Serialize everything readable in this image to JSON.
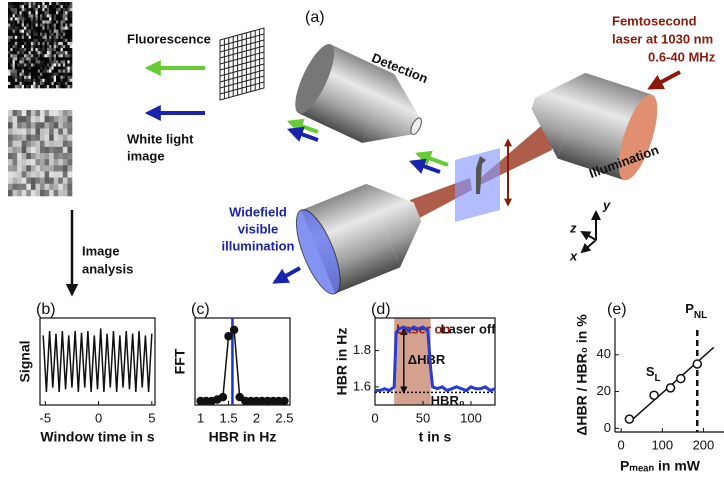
{
  "figure": {
    "panel_label": "(a)",
    "fluorescence": "Fluorescence",
    "white_light": [
      "White light",
      "image"
    ],
    "detection": "Detection",
    "laser": [
      "Femtosecond",
      "laser at 1030 nm",
      "0.6-40 MHz"
    ],
    "illumination": "Illumination",
    "widefield": [
      "Widefield",
      "visible",
      "illumination"
    ],
    "analysis": [
      "Image",
      "analysis"
    ],
    "axes": [
      "z",
      "y",
      "x"
    ]
  },
  "chart_data": [
    {
      "type": "line",
      "panel": "(b)",
      "y_label": "Signal",
      "x_label": "Window time in s",
      "color": "#111",
      "frame": true,
      "x": [
        -5.2,
        -4.9,
        -4.6,
        -4.3,
        -4.0,
        -3.7,
        -3.4,
        -3.1,
        -2.8,
        -2.5,
        -2.2,
        -1.9,
        -1.6,
        -1.3,
        -1.0,
        -0.7,
        -0.4,
        -0.1,
        0.2,
        0.5,
        0.8,
        1.1,
        1.4,
        1.7,
        2.0,
        2.3,
        2.6,
        2.9,
        3.2,
        3.5,
        3.8,
        4.1,
        4.4,
        4.7,
        5.0
      ],
      "values": [
        0.8,
        0.15,
        0.85,
        0.2,
        0.82,
        0.15,
        0.85,
        0.18,
        0.8,
        0.2,
        0.85,
        0.15,
        0.83,
        0.2,
        0.85,
        0.15,
        0.8,
        0.18,
        0.88,
        0.15,
        0.82,
        0.2,
        0.85,
        0.15,
        0.8,
        0.2,
        0.85,
        0.18,
        0.82,
        0.15,
        0.85,
        0.2,
        0.8,
        0.15,
        0.82
      ],
      "xlim": [
        -5.5,
        5.3
      ],
      "ylim": [
        0,
        1
      ],
      "xticks": [
        -5,
        0,
        5
      ]
    },
    {
      "type": "line",
      "panel": "(c)",
      "y_label": "FFT",
      "x_label": "HBR in Hz",
      "color": "#111",
      "markers": true,
      "frame": true,
      "x": [
        1.0,
        1.1,
        1.2,
        1.3,
        1.4,
        1.5,
        1.6,
        1.7,
        1.8,
        1.9,
        2.0,
        2.1,
        2.2,
        2.3,
        2.4,
        2.5
      ],
      "values": [
        0,
        0,
        0,
        0.02,
        0.05,
        0.82,
        0.9,
        0.05,
        0,
        0,
        0,
        0,
        0,
        0,
        0,
        0
      ],
      "xlim": [
        0.9,
        2.6
      ],
      "ylim": [
        -0.05,
        1.05
      ],
      "xticks": [
        1,
        1.5,
        2,
        2.5
      ],
      "vline": {
        "value": 1.57,
        "style": "solid",
        "color": "#2233bb"
      }
    },
    {
      "type": "line",
      "panel": "(d)",
      "y_label": "HBR in Hz",
      "x_label": "t in s",
      "color": "#2a3bd0",
      "frame": true,
      "x": [
        0,
        5,
        10,
        15,
        20,
        22,
        25,
        30,
        35,
        40,
        45,
        50,
        55,
        58,
        60,
        65,
        70,
        75,
        80,
        85,
        90,
        95,
        100,
        105,
        110,
        115,
        120,
        125
      ],
      "values": [
        1.58,
        1.58,
        1.59,
        1.58,
        1.6,
        1.9,
        1.92,
        1.93,
        1.91,
        1.93,
        1.92,
        1.93,
        1.91,
        1.7,
        1.6,
        1.59,
        1.6,
        1.58,
        1.59,
        1.6,
        1.59,
        1.58,
        1.6,
        1.59,
        1.59,
        1.6,
        1.58,
        1.59
      ],
      "xlim": [
        0,
        125
      ],
      "ylim": [
        1.5,
        1.98
      ],
      "xticks": [
        0,
        50,
        100
      ],
      "yticks": [
        1.6,
        1.8
      ],
      "shade": {
        "x": [
          20,
          58
        ],
        "color": "#c98a76"
      },
      "hline": {
        "value": 1.57,
        "label": "HBR₀"
      },
      "arrow": {
        "x": 30,
        "y": [
          1.57,
          1.92
        ],
        "label": "ΔHBR"
      },
      "annotations": [
        {
          "text": "Laser on",
          "color": "#8b1a0a"
        },
        {
          "text": "Laser off",
          "color": "#111"
        }
      ]
    },
    {
      "type": "scatter",
      "panel": "(e)",
      "y_label": "ΔHBR / HBR₀ in %",
      "x_label": "Pₘₑₐₙ in mW",
      "color": "#111",
      "frame": false,
      "x": [
        20,
        80,
        120,
        145,
        185
      ],
      "values": [
        5,
        18,
        22,
        27,
        35
      ],
      "xlim": [
        -15,
        250
      ],
      "ylim": [
        -2,
        60
      ],
      "xticks": [
        0,
        100,
        200
      ],
      "yticks": [
        0,
        20,
        40
      ],
      "fit": {
        "x": [
          18,
          225
        ],
        "y": [
          3,
          44
        ],
        "label": {
          "main": "S",
          "sub": "L"
        }
      },
      "vline": {
        "value": 185,
        "style": "dashed",
        "color": "#111",
        "label": {
          "main": "P",
          "sub": "NL"
        }
      }
    }
  ]
}
